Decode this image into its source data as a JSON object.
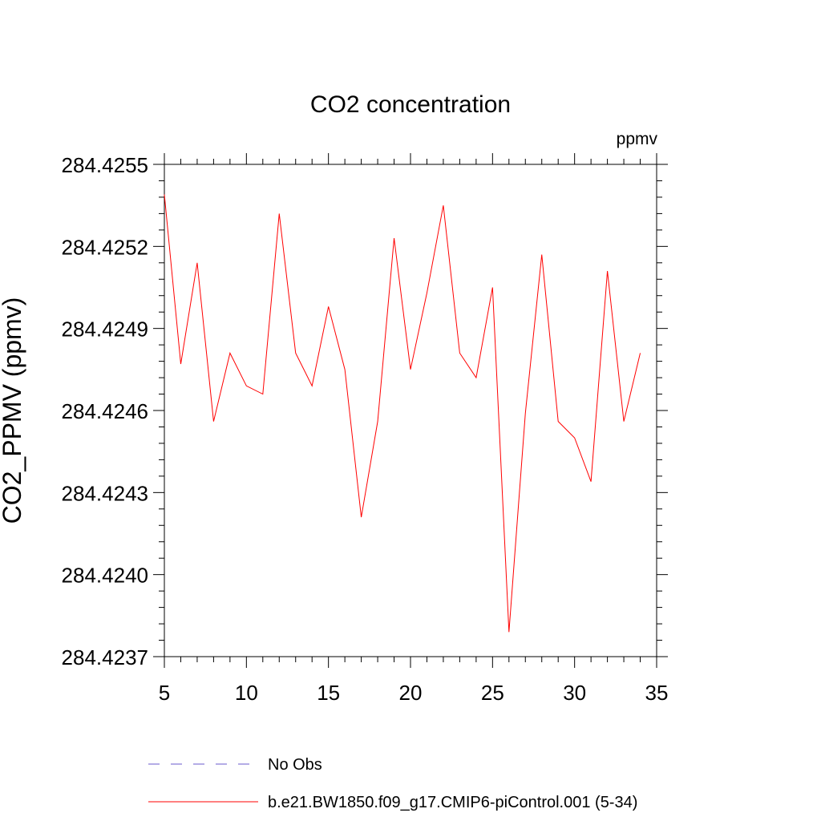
{
  "chart_data": {
    "type": "line",
    "title": "CO2 concentration",
    "units_label": "ppmv",
    "ylabel": "CO2_PPMV (ppmv)",
    "xlabel": "",
    "xlim": [
      5,
      35
    ],
    "ylim": [
      284.4237,
      284.4255
    ],
    "x_ticks": [
      5,
      10,
      15,
      20,
      25,
      30,
      35
    ],
    "x_tick_labels": [
      "5",
      "10",
      "15",
      "20",
      "25",
      "30",
      "35"
    ],
    "y_ticks": [
      284.4237,
      284.424,
      284.4243,
      284.4246,
      284.4249,
      284.4252,
      284.4255
    ],
    "y_tick_labels": [
      "284.4237",
      "284.4240",
      "284.4243",
      "284.4246",
      "284.4249",
      "284.4252",
      "284.4255"
    ],
    "grid": false,
    "legend_position": "bottom",
    "series": [
      {
        "name": "b.e21.BW1850.f09_g17.CMIP6-piControl.001 (5-34)",
        "color": "#ff0000",
        "style": "solid",
        "x": [
          5,
          6,
          7,
          8,
          9,
          10,
          11,
          12,
          13,
          14,
          15,
          16,
          17,
          18,
          19,
          20,
          21,
          22,
          23,
          24,
          25,
          26,
          27,
          28,
          29,
          30,
          31,
          32,
          33,
          34
        ],
        "values": [
          284.42539,
          284.42477,
          284.42514,
          284.42456,
          284.42481,
          284.42469,
          284.42466,
          284.42532,
          284.42481,
          284.42469,
          284.42498,
          284.42475,
          284.42421,
          284.42456,
          284.42523,
          284.42475,
          284.42503,
          284.42535,
          284.42481,
          284.42472,
          284.42505,
          284.42379,
          284.42459,
          284.42517,
          284.42456,
          284.4245,
          284.42434,
          284.42511,
          284.42456,
          284.42481
        ]
      }
    ],
    "legend": [
      {
        "label": "No Obs",
        "color": "#6a5acd",
        "style": "dashed"
      },
      {
        "label": "b.e21.BW1850.f09_g17.CMIP6-piControl.001 (5-34)",
        "color": "#ff0000",
        "style": "solid"
      }
    ]
  }
}
